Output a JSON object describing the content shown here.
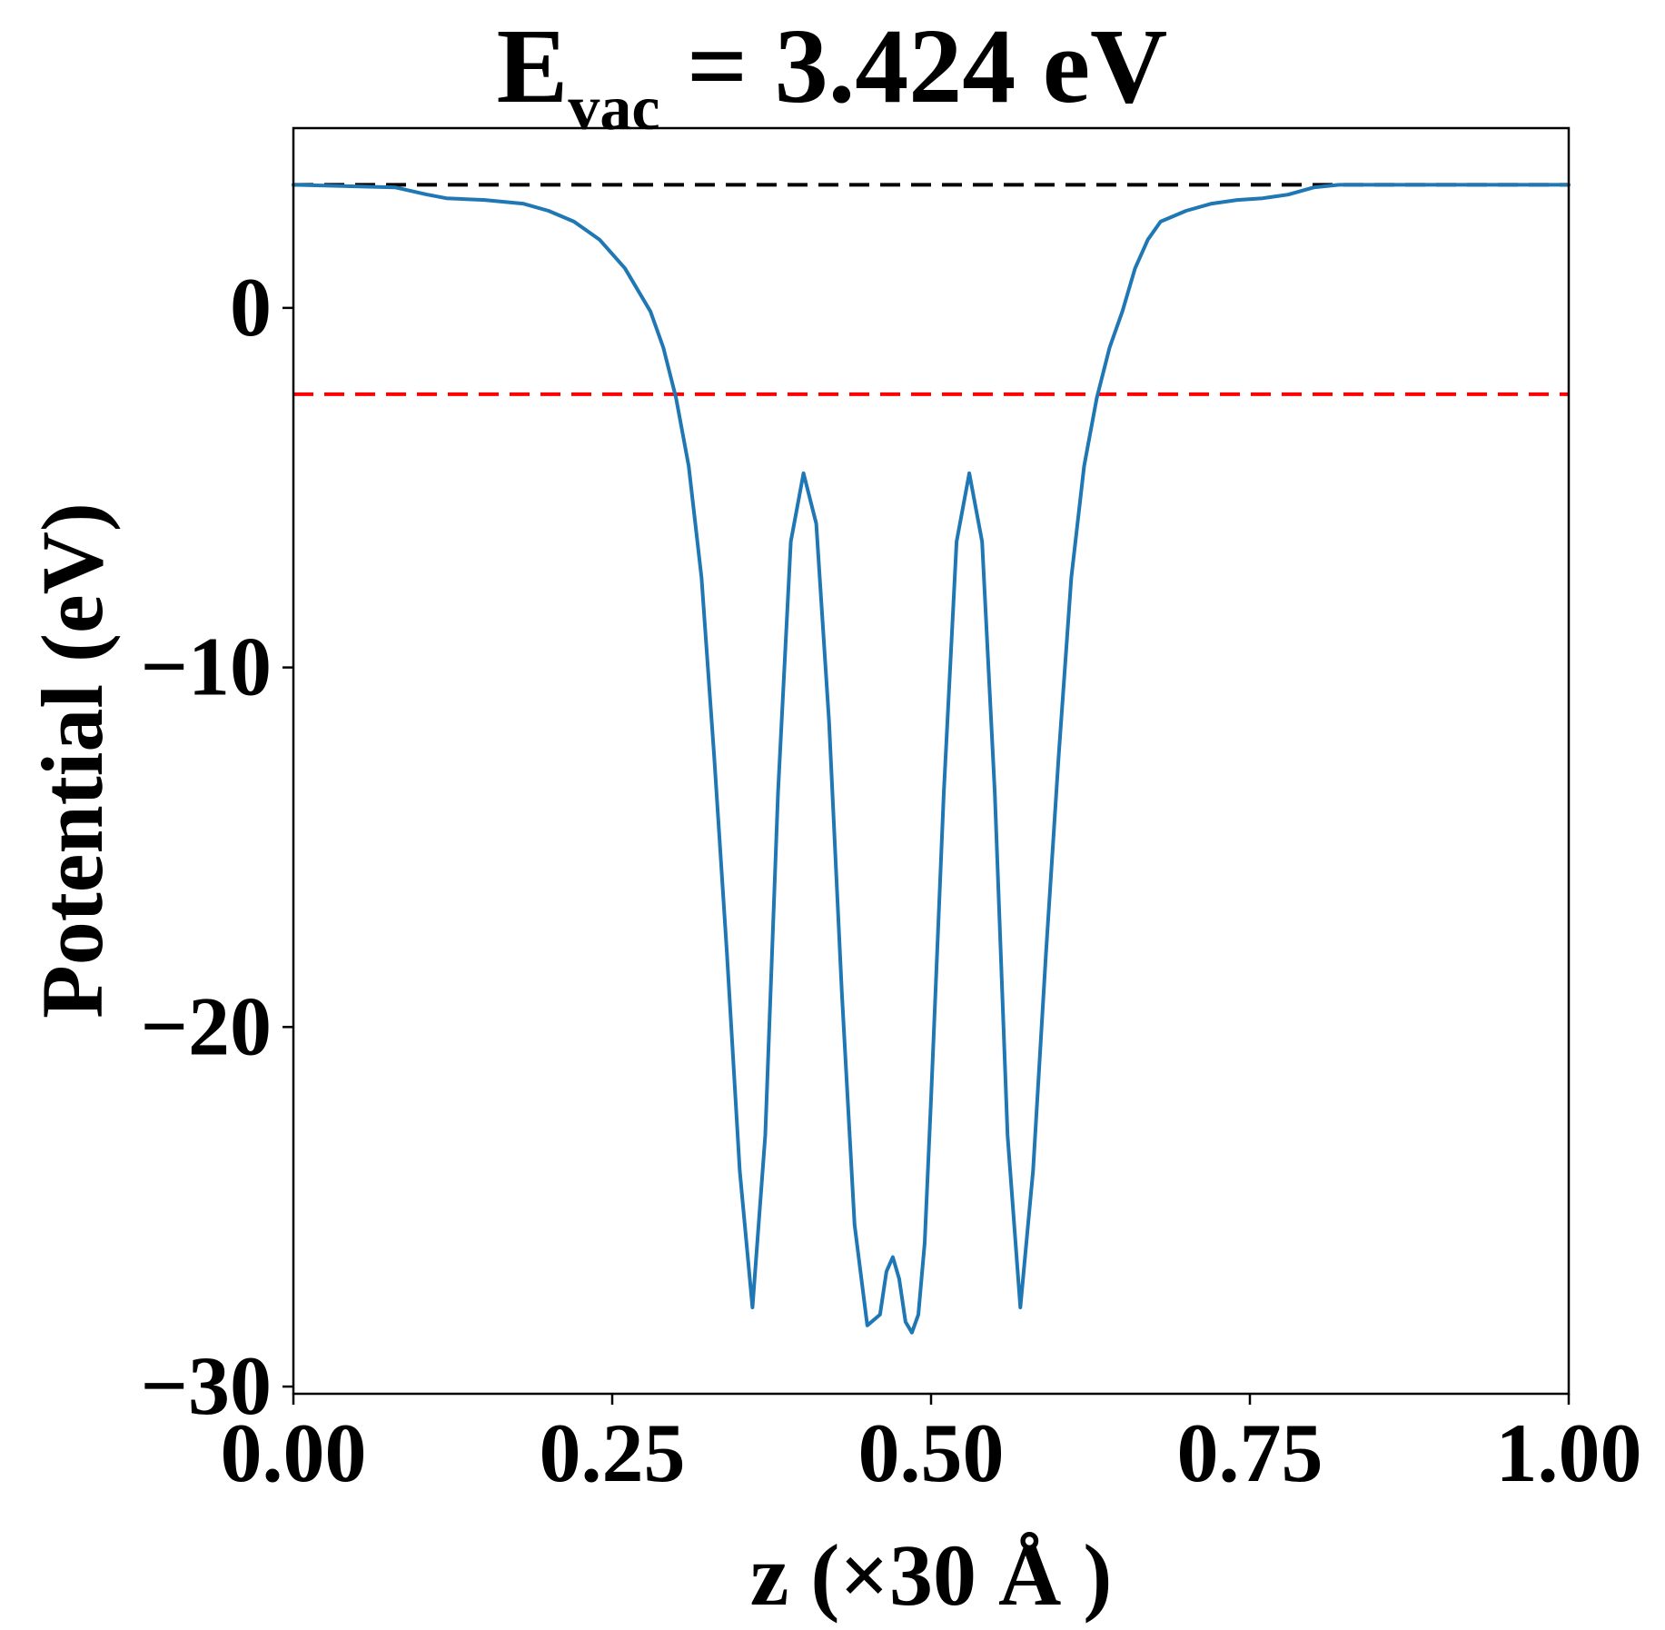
{
  "chart_data": {
    "type": "line",
    "title": {
      "main": "E",
      "subscript": "vac",
      "rest": " = 3.424 eV"
    },
    "xlabel": "z (×30 Å )",
    "ylabel": "Potential (eV)",
    "xlim": [
      0.0,
      1.0
    ],
    "ylim": [
      -30.2,
      5.0
    ],
    "xticks": [
      0.0,
      0.25,
      0.5,
      0.75,
      1.0
    ],
    "xtick_labels": [
      "0.00",
      "0.25",
      "0.50",
      "0.75",
      "1.00"
    ],
    "yticks": [
      0,
      -10,
      -20,
      -30
    ],
    "ytick_labels": [
      "0",
      "−10",
      "−20",
      "−30"
    ],
    "grid": false,
    "legend": "none",
    "reference_lines": [
      {
        "y": 3.424,
        "color": "#000000",
        "style": "dashed"
      },
      {
        "y": -2.4,
        "color": "#ff0000",
        "style": "dashed"
      }
    ],
    "series": [
      {
        "color": "#1f77b4",
        "x": [
          0.0,
          0.08,
          0.105,
          0.12,
          0.15,
          0.18,
          0.2,
          0.22,
          0.24,
          0.26,
          0.28,
          0.29,
          0.3,
          0.31,
          0.32,
          0.33,
          0.34,
          0.35,
          0.36,
          0.37,
          0.38,
          0.39,
          0.4,
          0.41,
          0.42,
          0.43,
          0.44,
          0.45,
          0.46,
          0.465,
          0.47,
          0.475,
          0.48,
          0.485,
          0.49,
          0.495,
          0.5,
          0.51,
          0.52,
          0.53,
          0.54,
          0.55,
          0.56,
          0.57,
          0.58,
          0.59,
          0.6,
          0.61,
          0.62,
          0.63,
          0.64,
          0.65,
          0.66,
          0.67,
          0.68,
          0.7,
          0.72,
          0.74,
          0.76,
          0.78,
          0.8,
          0.82,
          0.85,
          0.865,
          0.88,
          0.92,
          1.0
        ],
        "y": [
          3.424,
          3.35,
          3.15,
          3.05,
          3.0,
          2.9,
          2.7,
          2.4,
          1.9,
          1.1,
          -0.1,
          -1.1,
          -2.5,
          -4.4,
          -7.5,
          -12.5,
          -18.0,
          -24.0,
          -27.8,
          -23.0,
          -13.5,
          -6.5,
          -4.6,
          -6.0,
          -11.5,
          -19.0,
          -25.5,
          -28.3,
          -28.0,
          -26.8,
          -26.4,
          -27.0,
          -28.2,
          -28.5,
          -28.0,
          -26.0,
          -22.0,
          -13.5,
          -6.5,
          -4.6,
          -6.5,
          -13.5,
          -23.0,
          -27.8,
          -24.0,
          -18.0,
          -12.5,
          -7.5,
          -4.4,
          -2.5,
          -1.1,
          -0.1,
          1.1,
          1.9,
          2.4,
          2.7,
          2.9,
          3.0,
          3.05,
          3.15,
          3.35,
          3.424,
          3.424,
          3.424,
          3.424,
          3.424,
          3.424
        ]
      }
    ]
  }
}
